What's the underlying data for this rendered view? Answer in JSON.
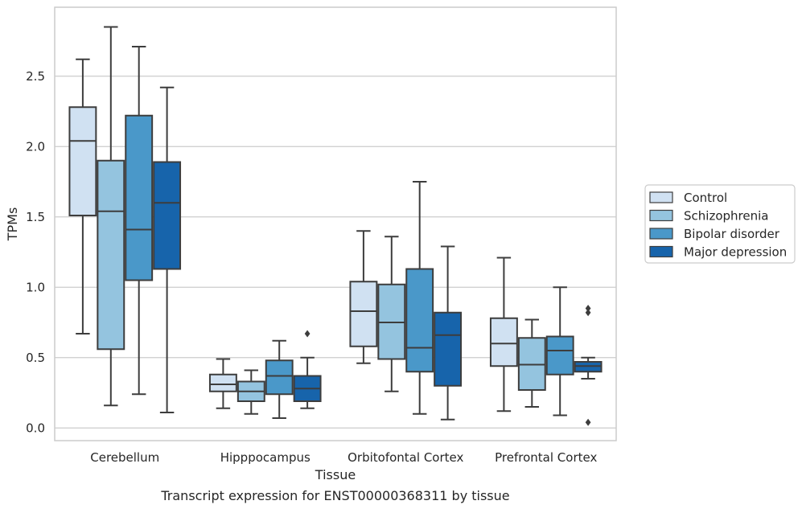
{
  "caption": "Transcript expression for ENST00000368311 by tissue",
  "chart_data": {
    "type": "box",
    "xlabel": "Tissue",
    "ylabel": "TPMs",
    "ylim": [
      -0.09,
      2.99
    ],
    "y_ticks": [
      "0.0",
      "0.5",
      "1.0",
      "1.5",
      "2.0",
      "2.5"
    ],
    "y_tick_values": [
      0,
      0.5,
      1.0,
      1.5,
      2.0,
      2.5
    ],
    "grid": "horizontal",
    "legend_position": "right",
    "categories": [
      "Cerebellum",
      "Hipppocampus",
      "Orbitofontal Cortex",
      "Prefrontal Cortex"
    ],
    "series": [
      {
        "name": "Control",
        "color": "#d0e1f2",
        "boxes": [
          {
            "whislo": 0.67,
            "q1": 1.51,
            "med": 2.04,
            "q3": 2.28,
            "whishi": 2.62,
            "fliers": []
          },
          {
            "whislo": 0.14,
            "q1": 0.26,
            "med": 0.31,
            "q3": 0.38,
            "whishi": 0.49,
            "fliers": []
          },
          {
            "whislo": 0.46,
            "q1": 0.58,
            "med": 0.83,
            "q3": 1.04,
            "whishi": 1.4,
            "fliers": []
          },
          {
            "whislo": 0.12,
            "q1": 0.44,
            "med": 0.6,
            "q3": 0.78,
            "whishi": 1.21,
            "fliers": []
          }
        ]
      },
      {
        "name": "Schizophrenia",
        "color": "#94c4df",
        "boxes": [
          {
            "whislo": 0.16,
            "q1": 0.56,
            "med": 1.54,
            "q3": 1.9,
            "whishi": 2.85,
            "fliers": []
          },
          {
            "whislo": 0.1,
            "q1": 0.19,
            "med": 0.26,
            "q3": 0.33,
            "whishi": 0.41,
            "fliers": []
          },
          {
            "whislo": 0.26,
            "q1": 0.49,
            "med": 0.75,
            "q3": 1.02,
            "whishi": 1.36,
            "fliers": []
          },
          {
            "whislo": 0.15,
            "q1": 0.27,
            "med": 0.45,
            "q3": 0.64,
            "whishi": 0.77,
            "fliers": []
          }
        ]
      },
      {
        "name": "Bipolar disorder",
        "color": "#4a98c9",
        "boxes": [
          {
            "whislo": 0.24,
            "q1": 1.05,
            "med": 1.41,
            "q3": 2.22,
            "whishi": 2.71,
            "fliers": []
          },
          {
            "whislo": 0.07,
            "q1": 0.24,
            "med": 0.37,
            "q3": 0.48,
            "whishi": 0.62,
            "fliers": []
          },
          {
            "whislo": 0.1,
            "q1": 0.4,
            "med": 0.57,
            "q3": 1.13,
            "whishi": 1.75,
            "fliers": []
          },
          {
            "whislo": 0.09,
            "q1": 0.38,
            "med": 0.55,
            "q3": 0.65,
            "whishi": 1.0,
            "fliers": []
          }
        ]
      },
      {
        "name": "Major depression",
        "color": "#1764ab",
        "boxes": [
          {
            "whislo": 0.11,
            "q1": 1.13,
            "med": 1.6,
            "q3": 1.89,
            "whishi": 2.42,
            "fliers": []
          },
          {
            "whislo": 0.14,
            "q1": 0.19,
            "med": 0.28,
            "q3": 0.37,
            "whishi": 0.5,
            "fliers": [
              0.67
            ]
          },
          {
            "whislo": 0.06,
            "q1": 0.3,
            "med": 0.66,
            "q3": 0.82,
            "whishi": 1.29,
            "fliers": []
          },
          {
            "whislo": 0.35,
            "q1": 0.4,
            "med": 0.44,
            "q3": 0.47,
            "whishi": 0.5,
            "fliers": [
              0.85,
              0.82,
              0.04
            ]
          }
        ]
      }
    ]
  }
}
